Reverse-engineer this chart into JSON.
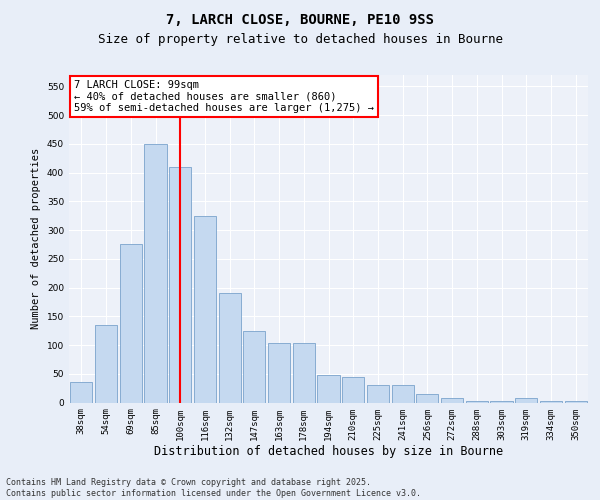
{
  "title1": "7, LARCH CLOSE, BOURNE, PE10 9SS",
  "title2": "Size of property relative to detached houses in Bourne",
  "xlabel": "Distribution of detached houses by size in Bourne",
  "ylabel": "Number of detached properties",
  "categories": [
    "38sqm",
    "54sqm",
    "69sqm",
    "85sqm",
    "100sqm",
    "116sqm",
    "132sqm",
    "147sqm",
    "163sqm",
    "178sqm",
    "194sqm",
    "210sqm",
    "225sqm",
    "241sqm",
    "256sqm",
    "272sqm",
    "288sqm",
    "303sqm",
    "319sqm",
    "334sqm",
    "350sqm"
  ],
  "values": [
    35,
    135,
    275,
    450,
    410,
    325,
    190,
    125,
    103,
    103,
    47,
    45,
    30,
    30,
    15,
    7,
    3,
    2,
    7,
    3,
    2
  ],
  "bar_color": "#c5d9f0",
  "bar_edge_color": "#7aa3cc",
  "vline_color": "red",
  "vline_pos": 4,
  "annotation_text": "7 LARCH CLOSE: 99sqm\n← 40% of detached houses are smaller (860)\n59% of semi-detached houses are larger (1,275) →",
  "annotation_box_color": "white",
  "annotation_box_edge": "red",
  "ylim": [
    0,
    570
  ],
  "yticks": [
    0,
    50,
    100,
    150,
    200,
    250,
    300,
    350,
    400,
    450,
    500,
    550
  ],
  "bg_color": "#e8eef8",
  "plot_bg": "#edf1f9",
  "grid_color": "#ffffff",
  "footer": "Contains HM Land Registry data © Crown copyright and database right 2025.\nContains public sector information licensed under the Open Government Licence v3.0.",
  "title1_fontsize": 10,
  "title2_fontsize": 9,
  "xlabel_fontsize": 8.5,
  "ylabel_fontsize": 7.5,
  "tick_fontsize": 6.5,
  "annotation_fontsize": 7.5,
  "footer_fontsize": 6
}
